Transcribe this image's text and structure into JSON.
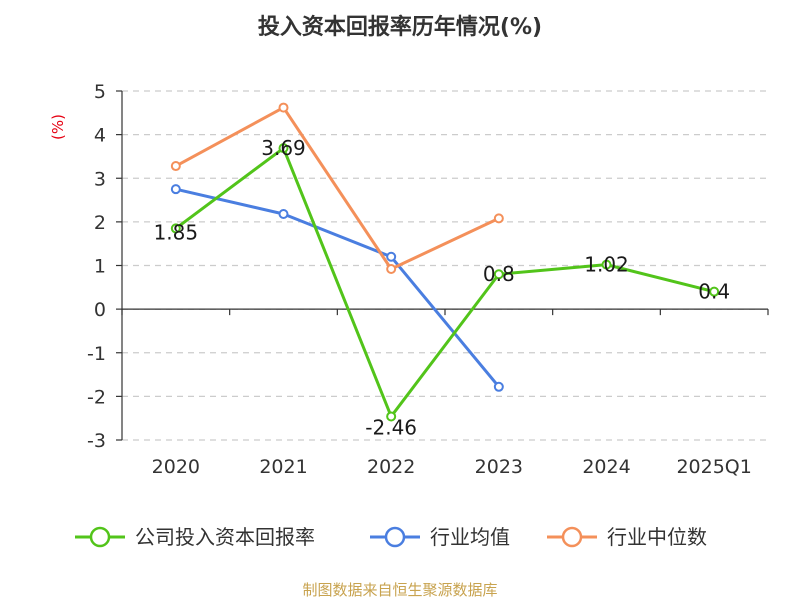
{
  "chart_data": {
    "type": "line",
    "title": "投入资本回报率历年情况(%)",
    "ylabel": "(%)",
    "categories": [
      "2020",
      "2021",
      "2022",
      "2023",
      "2024",
      "2025Q1"
    ],
    "ylim": [
      -3,
      5
    ],
    "yticks": [
      5,
      4,
      3,
      2,
      1,
      0,
      -1,
      -2,
      -3
    ],
    "grid": true,
    "legend_position": "bottom",
    "series": [
      {
        "name": "公司投入资本回报率",
        "color": "#52c41a",
        "values": [
          1.85,
          3.69,
          -2.46,
          0.8,
          1.02,
          0.4
        ],
        "labels": [
          "1.85",
          "3.69",
          "-2.46",
          "0.8",
          "1.02",
          "0.4"
        ]
      },
      {
        "name": "行业均值",
        "color": "#4a7ee0",
        "values": [
          2.75,
          2.18,
          1.2,
          -1.78,
          null,
          null
        ]
      },
      {
        "name": "行业中位数",
        "color": "#f4905a",
        "values": [
          3.28,
          4.62,
          0.92,
          2.08,
          null,
          null
        ]
      }
    ]
  },
  "footer": {
    "source": "制图数据来自恒生聚源数据库"
  }
}
